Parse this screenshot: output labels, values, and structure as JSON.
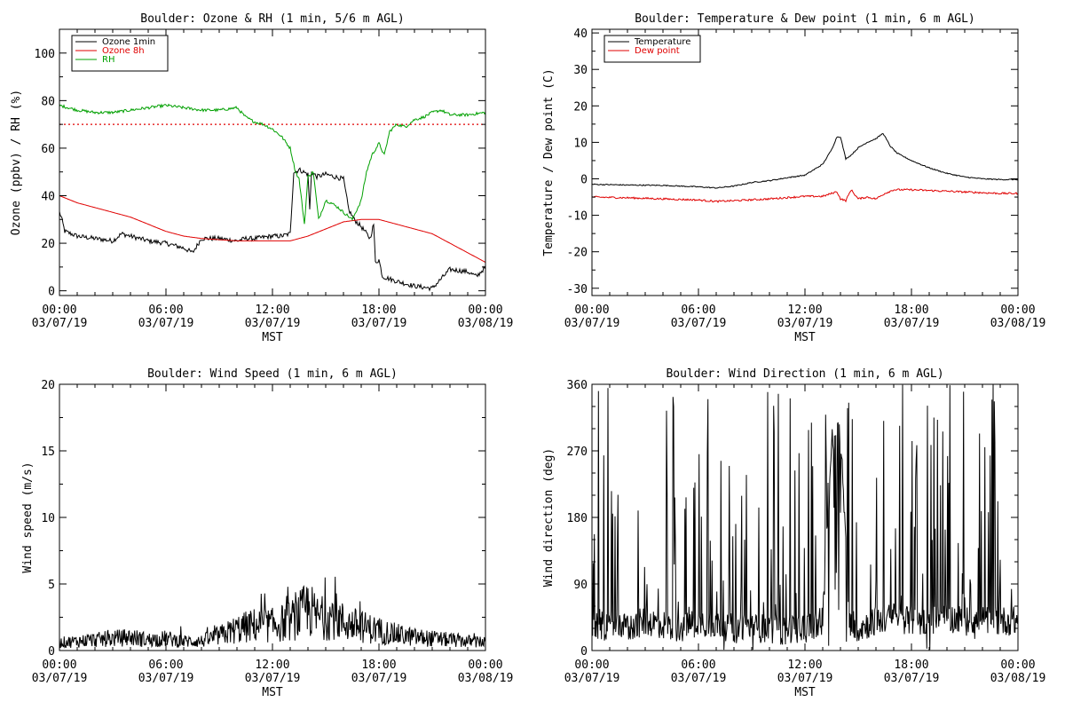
{
  "chart_data": [
    {
      "id": "ozone",
      "type": "line",
      "title": "Boulder: Ozone & RH (1 min, 5/6 m AGL)",
      "xlabel": "MST",
      "ylabel": "Ozone (ppbv) / RH (%)",
      "x_ticks": [
        {
          "top": "00:00",
          "bottom": "03/07/19"
        },
        {
          "top": "06:00",
          "bottom": "03/07/19"
        },
        {
          "top": "12:00",
          "bottom": "03/07/19"
        },
        {
          "top": "18:00",
          "bottom": "03/07/19"
        },
        {
          "top": "00:00",
          "bottom": "03/08/19"
        }
      ],
      "xlim": [
        0,
        24
      ],
      "ylim": [
        -2,
        110
      ],
      "yticks": [
        0,
        20,
        40,
        60,
        80,
        100
      ],
      "legend": "top-left",
      "reference_line": {
        "y": 70,
        "color": "#e00000",
        "style": "dotted"
      },
      "series": [
        {
          "name": "Ozone 1min",
          "color": "#000000",
          "x": [
            0,
            0.1,
            0.3,
            1,
            2,
            3,
            3.5,
            4,
            5,
            6,
            7,
            7.5,
            8,
            9,
            10,
            10.5,
            11,
            12,
            12.5,
            13,
            13.2,
            13.3,
            13.5,
            14,
            14.1,
            14.2,
            14.5,
            15,
            15.5,
            16,
            16.3,
            16.6,
            17,
            17.5,
            17.7,
            17.8,
            18,
            18.2,
            19,
            20,
            21,
            22,
            23,
            23.5,
            24
          ],
          "y": [
            33,
            31,
            25,
            23,
            22,
            21,
            24,
            23,
            21,
            20,
            18,
            16,
            22,
            22,
            21,
            22,
            22,
            23,
            23,
            24,
            50,
            50,
            51,
            49,
            34,
            50,
            48,
            49,
            48,
            47,
            34,
            30,
            27,
            22,
            28,
            12,
            13,
            6,
            4,
            2,
            1,
            9,
            8,
            6,
            10
          ]
        },
        {
          "name": "Ozone 8h",
          "color": "#e00000",
          "x": [
            0,
            1,
            2,
            3,
            4,
            5,
            6,
            7,
            8,
            9,
            10,
            11,
            12,
            13,
            14,
            15,
            16,
            17,
            18,
            19,
            20,
            21,
            22,
            23,
            24
          ],
          "y": [
            40,
            37,
            35,
            33,
            31,
            28,
            25,
            23,
            22,
            21.5,
            21,
            21,
            21,
            21,
            23,
            26,
            29,
            30,
            30,
            28,
            26,
            24,
            20,
            16,
            12
          ]
        },
        {
          "name": "RH",
          "color": "#00a000",
          "x": [
            0,
            1,
            2,
            3,
            4,
            5,
            6,
            7,
            8,
            9,
            10,
            10.5,
            11,
            11.5,
            12,
            12.5,
            13,
            13.3,
            13.5,
            13.8,
            14,
            14.3,
            14.6,
            15,
            15.3,
            15.7,
            16,
            16.5,
            17,
            17.3,
            17.6,
            18,
            18.3,
            18.6,
            19,
            19.5,
            20,
            20.5,
            21,
            21.5,
            22,
            23,
            24
          ],
          "y": [
            78,
            76,
            75,
            75,
            76,
            77,
            78,
            77,
            76,
            76,
            77,
            73,
            71,
            70,
            68,
            65,
            60,
            50,
            47,
            28,
            48,
            50,
            30,
            38,
            37,
            35,
            33,
            30,
            38,
            50,
            57,
            62,
            57,
            67,
            70,
            69,
            72,
            73,
            75,
            76,
            74,
            74,
            75
          ]
        }
      ]
    },
    {
      "id": "temp",
      "type": "line",
      "title": "Boulder: Temperature & Dew point (1 min, 6 m AGL)",
      "xlabel": "MST",
      "ylabel": "Temperature / Dew point (C)",
      "x_ticks": [
        {
          "top": "00:00",
          "bottom": "03/07/19"
        },
        {
          "top": "06:00",
          "bottom": "03/07/19"
        },
        {
          "top": "12:00",
          "bottom": "03/07/19"
        },
        {
          "top": "18:00",
          "bottom": "03/07/19"
        },
        {
          "top": "00:00",
          "bottom": "03/08/19"
        }
      ],
      "xlim": [
        0,
        24
      ],
      "ylim": [
        -32,
        41
      ],
      "yticks": [
        -30,
        -20,
        -10,
        0,
        10,
        20,
        30,
        40
      ],
      "legend": "top-left",
      "series": [
        {
          "name": "Temperature",
          "color": "#000000",
          "x": [
            0,
            2,
            4,
            6,
            7,
            8,
            9,
            10,
            11,
            12,
            12.5,
            13,
            13.5,
            13.8,
            14,
            14.3,
            14.6,
            15,
            15.5,
            16,
            16.4,
            16.8,
            17.2,
            18,
            19,
            20,
            21,
            22,
            23,
            24
          ],
          "y": [
            -1.5,
            -1.7,
            -1.8,
            -2.2,
            -2.5,
            -2.0,
            -1.0,
            -0.5,
            0.3,
            1.0,
            2.5,
            4.0,
            8.0,
            11.5,
            11.5,
            5.5,
            6.5,
            8.5,
            10.0,
            11.0,
            12.5,
            9.0,
            7.0,
            5.0,
            3.0,
            1.5,
            0.5,
            0,
            -0.2,
            -0.2
          ]
        },
        {
          "name": "Dew point",
          "color": "#e00000",
          "x": [
            0,
            2,
            4,
            6,
            7,
            8,
            10,
            12,
            13,
            13.5,
            13.8,
            14,
            14.3,
            14.6,
            15,
            15.5,
            16,
            16.5,
            17,
            18,
            19,
            20,
            21,
            22,
            23,
            24
          ],
          "y": [
            -5,
            -5.2,
            -5.5,
            -5.8,
            -6.2,
            -6.0,
            -5.5,
            -4.8,
            -4.8,
            -4.0,
            -3.5,
            -5.5,
            -6.0,
            -3.0,
            -5.5,
            -5.0,
            -5.5,
            -4.0,
            -3.0,
            -3.0,
            -3.2,
            -3.4,
            -3.6,
            -3.8,
            -4.0,
            -4.0
          ]
        }
      ]
    },
    {
      "id": "wspd",
      "type": "line",
      "title": "Boulder: Wind Speed (1 min, 6 m AGL)",
      "xlabel": "MST",
      "ylabel": "Wind speed (m/s)",
      "x_ticks": [
        {
          "top": "00:00",
          "bottom": "03/07/19"
        },
        {
          "top": "06:00",
          "bottom": "03/07/19"
        },
        {
          "top": "12:00",
          "bottom": "03/07/19"
        },
        {
          "top": "18:00",
          "bottom": "03/07/19"
        },
        {
          "top": "00:00",
          "bottom": "03/08/19"
        }
      ],
      "xlim": [
        0,
        24
      ],
      "ylim": [
        0,
        20
      ],
      "yticks": [
        0,
        5,
        10,
        15,
        20
      ],
      "series": [
        {
          "name": "",
          "color": "#000000",
          "x": [
            0,
            1,
            2,
            3,
            4,
            5,
            6,
            7,
            8,
            9,
            10,
            11,
            12,
            13,
            13.5,
            14,
            14.5,
            15,
            15.5,
            16,
            17,
            18,
            19,
            20,
            21,
            22,
            23,
            24
          ],
          "y": [
            0.6,
            0.7,
            0.8,
            0.9,
            1.0,
            0.8,
            0.9,
            0.7,
            0.7,
            1.1,
            1.6,
            1.9,
            1.9,
            2.2,
            2.6,
            3.2,
            2.5,
            2.4,
            2.7,
            2.1,
            1.8,
            1.5,
            1.2,
            1.0,
            0.9,
            0.8,
            0.7,
            0.6
          ]
        }
      ]
    },
    {
      "id": "wdir",
      "type": "line",
      "title": "Boulder: Wind Direction (1 min, 6 m AGL)",
      "xlabel": "MST",
      "ylabel": "Wind direction (deg)",
      "x_ticks": [
        {
          "top": "00:00",
          "bottom": "03/07/19"
        },
        {
          "top": "06:00",
          "bottom": "03/07/19"
        },
        {
          "top": "12:00",
          "bottom": "03/07/19"
        },
        {
          "top": "18:00",
          "bottom": "03/07/19"
        },
        {
          "top": "00:00",
          "bottom": "03/08/19"
        }
      ],
      "xlim": [
        0,
        24
      ],
      "ylim": [
        0,
        360
      ],
      "yticks": [
        0,
        90,
        180,
        270,
        360
      ],
      "series": [
        {
          "name": "",
          "color": "#000000",
          "x": [
            0,
            1,
            2,
            3,
            4,
            5,
            6,
            7,
            8,
            9,
            10,
            11,
            12,
            13,
            13.5,
            14,
            14.5,
            15,
            16,
            17,
            18,
            19,
            20,
            21,
            22,
            23,
            24
          ],
          "y": [
            30,
            35,
            30,
            40,
            35,
            30,
            40,
            35,
            30,
            30,
            30,
            25,
            30,
            40,
            280,
            300,
            40,
            30,
            40,
            45,
            40,
            40,
            45,
            40,
            40,
            40,
            40
          ]
        }
      ]
    }
  ]
}
